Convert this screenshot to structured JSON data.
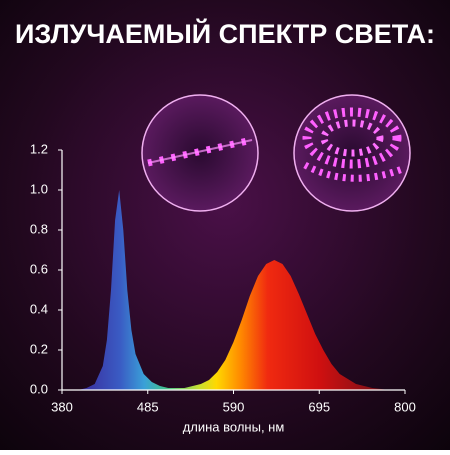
{
  "chart_data": {
    "type": "area",
    "title": "ИЗЛУЧАЕМЫЙ СПЕКТР СВЕТА:",
    "x_label": "длина волны, нм",
    "x": [
      400,
      410,
      420,
      430,
      435,
      440,
      445,
      450,
      455,
      460,
      465,
      470,
      480,
      490,
      500,
      510,
      520,
      530,
      540,
      550,
      560,
      570,
      580,
      590,
      600,
      610,
      620,
      630,
      640,
      650,
      660,
      670,
      680,
      690,
      700,
      710,
      720,
      740,
      760,
      780
    ],
    "values": [
      0,
      0.01,
      0.03,
      0.12,
      0.25,
      0.5,
      0.85,
      1.0,
      0.8,
      0.5,
      0.3,
      0.18,
      0.08,
      0.04,
      0.02,
      0.01,
      0.01,
      0.01,
      0.02,
      0.03,
      0.05,
      0.09,
      0.15,
      0.24,
      0.35,
      0.47,
      0.57,
      0.63,
      0.65,
      0.63,
      0.57,
      0.48,
      0.38,
      0.28,
      0.2,
      0.13,
      0.08,
      0.03,
      0.01,
      0
    ],
    "xlim": [
      380,
      800
    ],
    "xticks": [
      380,
      485,
      590,
      695,
      800
    ],
    "ylim": [
      0,
      1.2
    ],
    "yticks": [
      {
        "value": 0,
        "label": "0.0"
      },
      0.2,
      0.4,
      0.6,
      0.8,
      {
        "value": 1,
        "label": "1.0"
      },
      1.2
    ]
  }
}
